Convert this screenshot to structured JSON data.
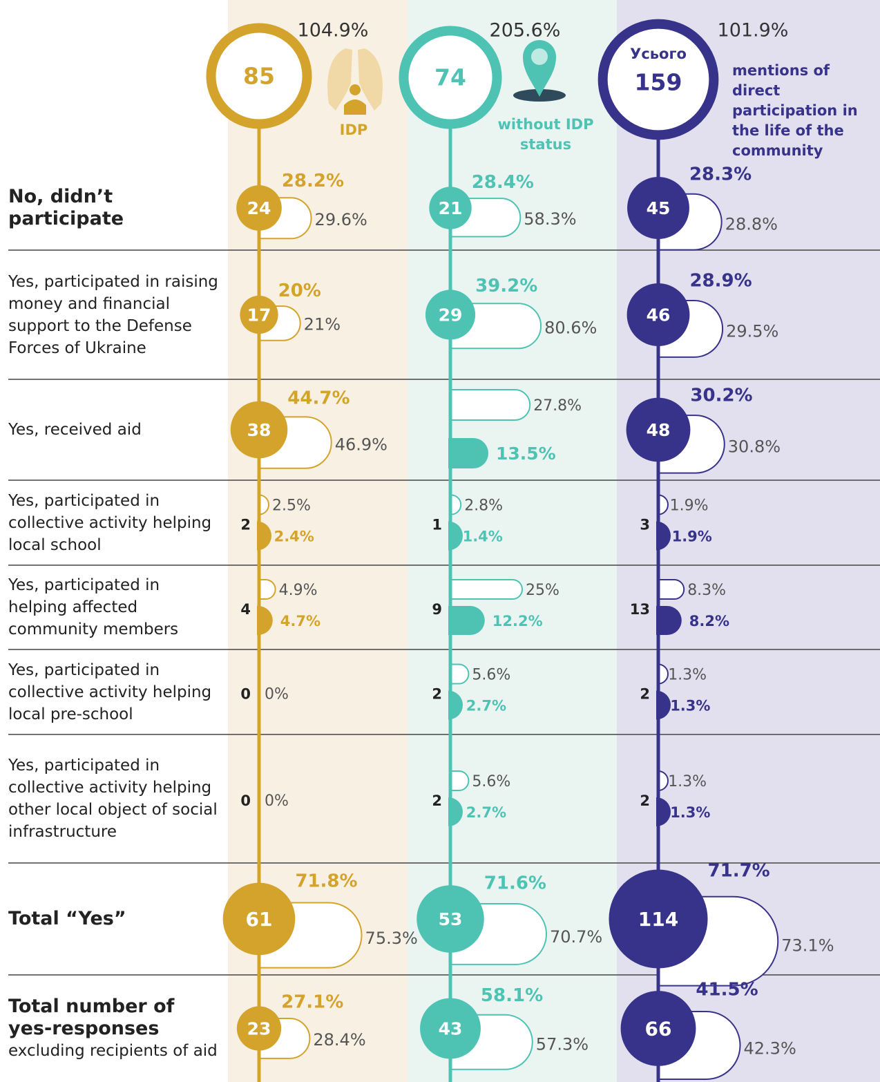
{
  "columns": [
    {
      "label": "IDP",
      "count": 85,
      "total": "104.9%"
    },
    {
      "label": "without IDP status",
      "count": 74,
      "total": "205.6%"
    },
    {
      "title": "Усього",
      "count": 159,
      "total": "101.9%",
      "note": "mentions of direct participation in the life of the community"
    }
  ],
  "rows": [
    {
      "label": "No, didn’t participate",
      "cells": [
        {
          "count": 24,
          "share": "28.2%",
          "rate": "29.6%"
        },
        {
          "count": 21,
          "share": "28.4%",
          "rate": "58.3%"
        },
        {
          "count": 45,
          "share": "28.3%",
          "rate": "28.8%"
        }
      ]
    },
    {
      "label": "Yes, participated in raising money and financial support to the Defense Forces of Ukraine",
      "cells": [
        {
          "count": 17,
          "share": "20%",
          "rate": "21%"
        },
        {
          "count": 29,
          "share": "39.2%",
          "rate": "80.6%"
        },
        {
          "count": 46,
          "share": "28.9%",
          "rate": "29.5%"
        }
      ]
    },
    {
      "label": "Yes, received aid",
      "cells": [
        {
          "count": 38,
          "share": "44.7%",
          "rate": "46.9%"
        },
        {
          "share": "13.5%",
          "rate": "27.8%"
        },
        {
          "count": 48,
          "share": "30.2%",
          "rate": "30.8%"
        }
      ]
    },
    {
      "label": "Yes, participated in collective activity helping local school",
      "cells": [
        {
          "count": 2,
          "share": "2.4%",
          "rate": "2.5%"
        },
        {
          "count": 1,
          "share": "1.4%",
          "rate": "2.8%"
        },
        {
          "count": 3,
          "share": "1.9%",
          "rate": "1.9%"
        }
      ]
    },
    {
      "label": "Yes, participated in helping affected community members",
      "cells": [
        {
          "count": 4,
          "share": "4.7%",
          "rate": "4.9%"
        },
        {
          "count": 9,
          "share": "12.2%",
          "rate": "25%"
        },
        {
          "count": 13,
          "share": "8.2%",
          "rate": "8.3%"
        }
      ]
    },
    {
      "label": "Yes, participated in collective activity helping local pre-school",
      "cells": [
        {
          "count": 0,
          "rate": "0%"
        },
        {
          "count": 2,
          "share": "2.7%",
          "rate": "5.6%"
        },
        {
          "count": 2,
          "share": "1.3%",
          "rate": "1.3%"
        }
      ]
    },
    {
      "label": "Yes, participated in collective activity helping other local object of social infrastructure",
      "cells": [
        {
          "count": 0,
          "rate": "0%"
        },
        {
          "count": 2,
          "share": "2.7%",
          "rate": "5.6%"
        },
        {
          "count": 2,
          "share": "1.3%",
          "rate": "1.3%"
        }
      ]
    },
    {
      "label": "Total “Yes”",
      "cells": [
        {
          "count": 61,
          "share": "71.8%",
          "rate": "75.3%"
        },
        {
          "count": 53,
          "share": "71.6%",
          "rate": "70.7%"
        },
        {
          "count": 114,
          "share": "71.7%",
          "rate": "73.1%"
        }
      ]
    },
    {
      "label": "Total number of yes-responses",
      "sublabel": "excluding recipients of aid",
      "cells": [
        {
          "count": 23,
          "share": "27.1%",
          "rate": "28.4%"
        },
        {
          "count": 43,
          "share": "58.1%",
          "rate": "57.3%"
        },
        {
          "count": 66,
          "share": "41.5%",
          "rate": "42.3%"
        }
      ]
    }
  ]
}
